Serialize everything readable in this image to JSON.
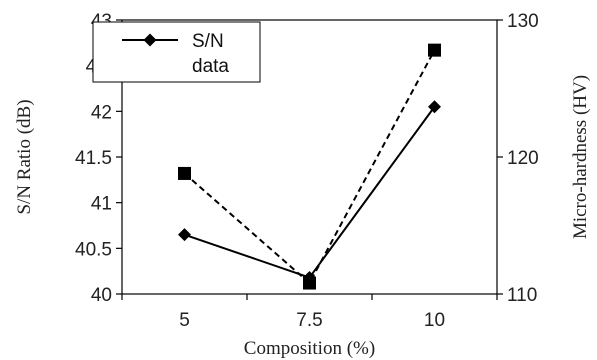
{
  "chart_data": {
    "type": "line",
    "categories": [
      "5",
      "7.5",
      "10"
    ],
    "xlabel": "Composition (%)",
    "ylabel": "S/N Ratio (dB)",
    "y2label": "Micro-hardness (HV)",
    "ylim": [
      40,
      43
    ],
    "y2lim": [
      110,
      130
    ],
    "yticks": [
      "40",
      "40.5",
      "41",
      "41.5",
      "42",
      "42.",
      "43"
    ],
    "y2ticks": [
      "110",
      "120",
      "130"
    ],
    "legend_position": "top-left",
    "series": [
      {
        "name": "S/N",
        "axis": "left",
        "style": "solid",
        "marker": "diamond",
        "color": "#000000",
        "values": [
          40.65,
          40.18,
          42.05
        ]
      },
      {
        "name": "data",
        "axis": "right",
        "style": "dashed",
        "marker": "square",
        "color": "#000000",
        "values": [
          118.8,
          110.8,
          127.8
        ]
      }
    ]
  }
}
